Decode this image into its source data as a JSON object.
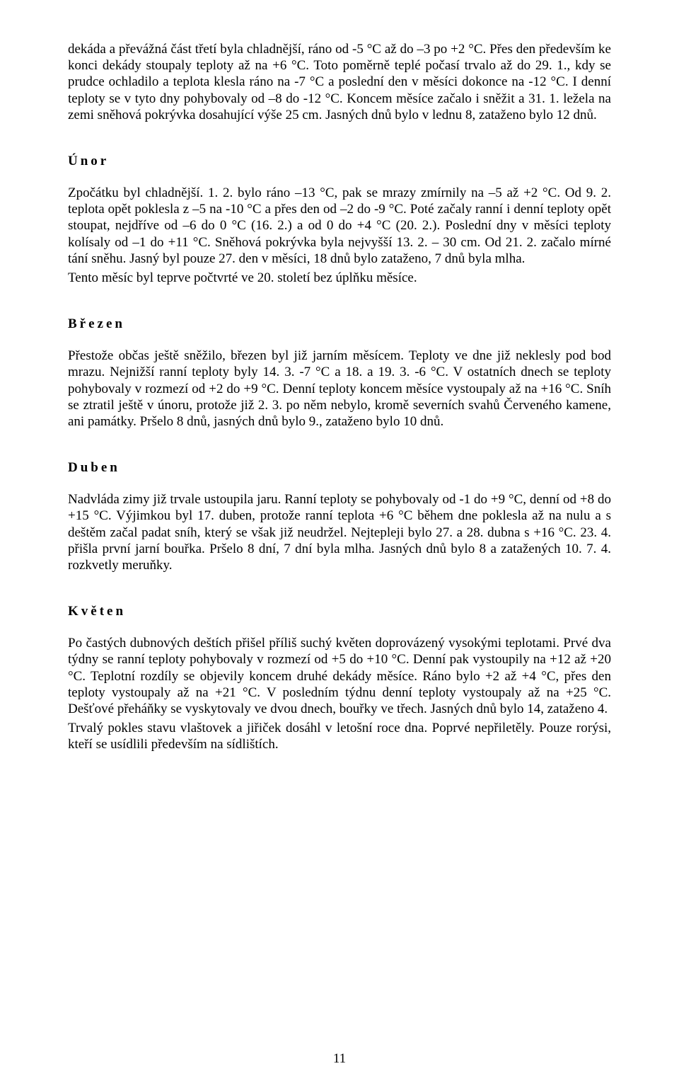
{
  "intro": {
    "p1": "dekáda a převážná část třetí byla chladnější, ráno od -5 °C až do –3 po +2 °C. Přes den především ke konci dekády stoupaly teploty až na +6 °C. Toto poměrně teplé počasí trvalo až do 29. 1., kdy se prudce ochladilo a teplota klesla ráno na -7 °C a poslední den v měsíci dokonce na -12 °C. I denní teploty se v tyto dny pohybovaly od –8 do -12 °C. Koncem měsíce začalo i sněžit a 31. 1. ležela na zemi sněhová pokrývka dosahující výše 25 cm. Jasných dnů bylo v lednu 8, zataženo bylo 12 dnů."
  },
  "unor": {
    "heading": "Únor",
    "p1": "Zpočátku byl chladnější. 1. 2. bylo ráno –13 °C, pak se mrazy zmírnily na –5 až +2 °C. Od 9. 2. teplota opět poklesla z –5 na -10 °C a přes den od –2 do -9 °C. Poté začaly ranní i denní teploty opět stoupat, nejdříve od –6 do 0 °C (16. 2.) a od 0 do +4 °C (20. 2.). Poslední dny v měsíci teploty kolísaly od –1 do +11 °C. Sněhová pokrývka byla nejvyšší 13. 2. – 30 cm. Od 21. 2. začalo mírné tání sněhu. Jasný byl pouze 27. den v měsíci, 18 dnů bylo zataženo, 7 dnů byla mlha.",
    "p2": "Tento měsíc byl teprve počtvrté ve 20. století bez úplňku měsíce."
  },
  "brezen": {
    "heading": "Březen",
    "p1": "Přestože občas ještě sněžilo, březen byl již jarním měsícem. Teploty ve dne již neklesly pod bod mrazu. Nejnižší ranní teploty byly 14. 3. -7 °C a 18. a 19. 3. -6 °C. V ostatních dnech se teploty pohybovaly v rozmezí od +2 do +9 °C. Denní teploty koncem měsíce vystoupaly až na +16 °C. Sníh se ztratil ještě v únoru, protože již 2. 3. po něm nebylo, kromě severních svahů Červeného kamene, ani památky. Pršelo 8 dnů, jasných dnů bylo 9., zataženo bylo 10 dnů."
  },
  "duben": {
    "heading": "Duben",
    "p1": "Nadvláda zimy již trvale ustoupila jaru. Ranní teploty se pohybovaly od -1 do +9 °C, denní od +8 do +15 °C. Výjimkou byl 17. duben, protože ranní teplota +6 °C během dne poklesla až na nulu a s deštěm začal padat sníh, který se však již neudržel. Nejtepleji bylo 27. a 28. dubna s +16 °C. 23. 4. přišla první jarní bouřka. Pršelo 8 dní, 7 dní byla mlha. Jasných dnů bylo 8 a zatažených 10. 7. 4. rozkvetly meruňky."
  },
  "kveten": {
    "heading": "Květen",
    "p1": "Po častých dubnových deštích přišel příliš suchý květen doprovázený vysokými teplotami. Prvé dva týdny se ranní teploty pohybovaly v rozmezí od +5 do +10 °C. Denní pak vystoupily na +12 až +20 °C. Teplotní rozdíly se objevily koncem druhé dekády měsíce. Ráno bylo +2 až +4 °C, přes den teploty vystoupaly až na +21 °C. V posledním týdnu denní teploty vystoupaly až na +25 °C. Dešťové přeháňky se vyskytovaly ve dvou dnech, bouřky ve třech. Jasných dnů bylo 14, zataženo 4.",
    "p2": "Trvalý pokles stavu vlaštovek a jiřiček dosáhl v letošní roce dna. Poprvé nepřiletěly. Pouze rorýsi, kteří se usídlili především na sídlištích."
  },
  "pageNumber": "11"
}
